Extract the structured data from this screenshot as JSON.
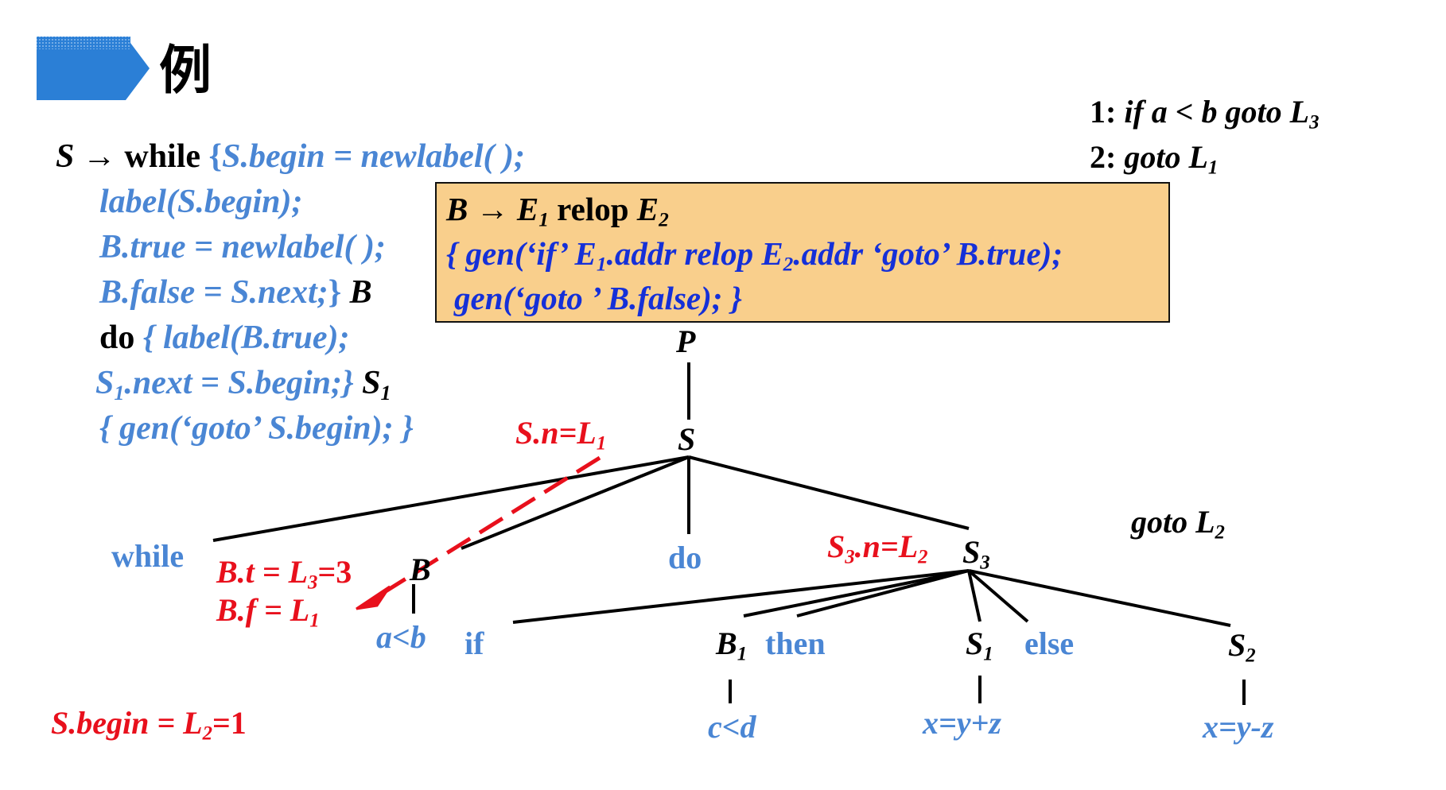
{
  "header": {
    "title": "例"
  },
  "left_rules": {
    "line1": {
      "head": "S",
      "arrow": "→",
      "keyword": "while",
      "open_brace": "{",
      "action": "S.begin = newlabel( );"
    },
    "line2": "label(S.begin);",
    "line3": "B.true = newlabel( );",
    "line4": {
      "action": "B.false = S.next;",
      "close_brace": "}",
      "symbol": "B"
    },
    "line5": {
      "keyword": "do",
      "action": "{ label(B.true);"
    },
    "line6": {
      "action_sym": "S",
      "action_sub": "1",
      "action_rest": ".next = S.begin;}",
      "symbol": "S",
      "symbol_sub": "1"
    },
    "line7": "{ gen(‘goto’ S.begin); }"
  },
  "relop_rule": {
    "head": "B",
    "arrow": "→",
    "e1": "E",
    "e1_sub": "1",
    "relop": "relop",
    "e2": "E",
    "e2_sub": "2",
    "line2_a": "{ gen(‘if’ E",
    "line2_sub1": "1",
    "line2_b": ".addr relop E",
    "line2_sub2": "2",
    "line2_c": ".addr ‘goto’  B.true);",
    "line3": "gen(‘goto ’ B.false); }"
  },
  "generated_code": {
    "line1": {
      "num": "1:",
      "code": "if a < b  goto L",
      "sub": "3"
    },
    "line2": {
      "num": "2:",
      "code": "goto L",
      "sub": "1"
    },
    "line3": {
      "code": "goto L",
      "sub": "2"
    }
  },
  "tree": {
    "P": "P",
    "S": "S",
    "while": "while",
    "B": "B",
    "do": "do",
    "S3": "S",
    "S3_sub": "3",
    "a_lt_b": "a<b",
    "if": "if",
    "B1": "B",
    "B1_sub": "1",
    "then": "then",
    "S1": "S",
    "S1_sub": "1",
    "else": "else",
    "S2": "S",
    "S2_sub": "2",
    "c_lt_d": "c<d",
    "assign1": "x=y+z",
    "assign2": "x=y-z"
  },
  "annotations": {
    "s_next": "S.n=L",
    "s_next_sub": "1",
    "b_true": "B.t = L",
    "b_true_sub": "3",
    "b_true_val": "=3",
    "b_false": "B.f = L",
    "b_false_sub": "1",
    "s3_next": "S",
    "s3_next_sub": "3",
    "s3_next_rest": ".n=L",
    "s3_next_sub2": "2",
    "s_begin": "S.begin = L",
    "s_begin_sub": "2",
    "s_begin_val": "=1"
  },
  "colors": {
    "header_bar": "#2b7fd6",
    "action_blue": "#4a86d4",
    "box_blue": "#1530d8",
    "annotation_red": "#e8101c",
    "box_fill": "#f9cf8c"
  }
}
